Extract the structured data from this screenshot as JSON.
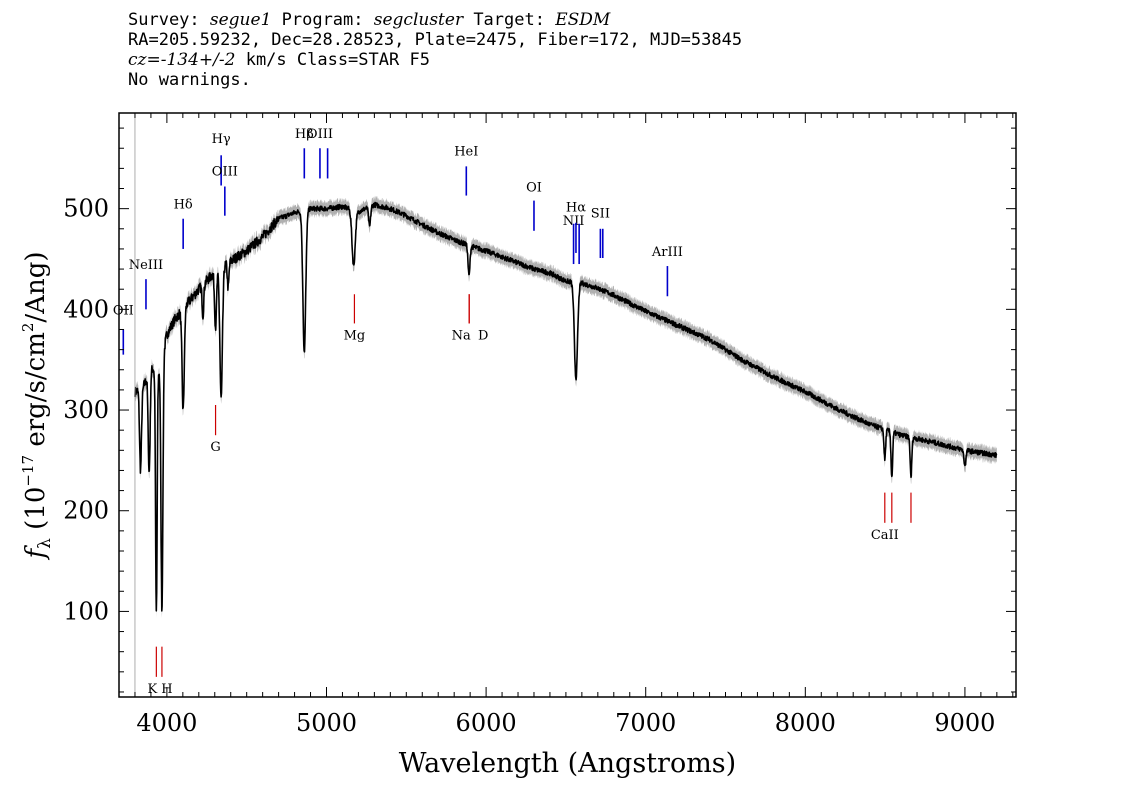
{
  "header": {
    "line1": {
      "survey_label": "Survey: ",
      "survey": "segue1",
      "program_label": " Program: ",
      "program": "segcluster",
      "target_label": " Target: ",
      "target": "ESDM"
    },
    "line2": "RA=205.59232, Dec=28.28523, Plate=2475, Fiber=172, MJD=53845",
    "line3": {
      "cz_label": "cz=",
      "cz": "-134+/-2",
      "rest": " km/s Class=STAR F5"
    },
    "line4": "No warnings."
  },
  "chart_data": {
    "type": "line",
    "xlabel": "Wavelength (Angstroms)",
    "ylabel_parts": {
      "f": "f",
      "sub": "λ",
      "a": " (10",
      "sup1": "−17",
      "b": " erg/s/cm",
      "sup2": "2",
      "c": "/Ang)"
    },
    "xlim": [
      3700,
      9320
    ],
    "ylim": [
      15,
      595
    ],
    "x_ticks": [
      4000,
      5000,
      6000,
      7000,
      8000,
      9000
    ],
    "x_tick_labels": [
      "4000",
      "5000",
      "6000",
      "7000",
      "8000",
      "9000"
    ],
    "y_ticks": [
      100,
      200,
      300,
      400,
      500
    ],
    "y_tick_labels": [
      "100",
      "200",
      "300",
      "400",
      "500"
    ],
    "spectrum_color": "#000000",
    "error_band_color": "#b0b0b0",
    "continuum": [
      [
        3800,
        318
      ],
      [
        3850,
        322
      ],
      [
        3900,
        342
      ],
      [
        3950,
        338
      ],
      [
        4000,
        375
      ],
      [
        4050,
        390
      ],
      [
        4100,
        400
      ],
      [
        4200,
        420
      ],
      [
        4300,
        437
      ],
      [
        4400,
        448
      ],
      [
        4500,
        458
      ],
      [
        4600,
        472
      ],
      [
        4700,
        490
      ],
      [
        4800,
        496
      ],
      [
        4900,
        500
      ],
      [
        5000,
        500
      ],
      [
        5100,
        502
      ],
      [
        5200,
        497
      ],
      [
        5300,
        504
      ],
      [
        5400,
        500
      ],
      [
        5500,
        493
      ],
      [
        5600,
        484
      ],
      [
        5700,
        476
      ],
      [
        5800,
        469
      ],
      [
        5900,
        463
      ],
      [
        6000,
        458
      ],
      [
        6100,
        452
      ],
      [
        6200,
        446
      ],
      [
        6300,
        440
      ],
      [
        6400,
        436
      ],
      [
        6500,
        428
      ],
      [
        6600,
        426
      ],
      [
        6700,
        421
      ],
      [
        6800,
        414
      ],
      [
        6900,
        406
      ],
      [
        7000,
        398
      ],
      [
        7200,
        384
      ],
      [
        7400,
        370
      ],
      [
        7600,
        350
      ],
      [
        7800,
        333
      ],
      [
        8000,
        318
      ],
      [
        8200,
        301
      ],
      [
        8400,
        286
      ],
      [
        8600,
        275
      ],
      [
        8800,
        268
      ],
      [
        9000,
        260
      ],
      [
        9200,
        255
      ]
    ],
    "absorption_lines": [
      {
        "x": 3835,
        "depth": 80,
        "width": 6
      },
      {
        "x": 3889,
        "depth": 100,
        "width": 6
      },
      {
        "x": 3934,
        "depth": 240,
        "width": 5
      },
      {
        "x": 3969,
        "depth": 250,
        "width": 6
      },
      {
        "x": 4102,
        "depth": 100,
        "width": 7
      },
      {
        "x": 4226,
        "depth": 30,
        "width": 5
      },
      {
        "x": 4305,
        "depth": 55,
        "width": 6
      },
      {
        "x": 4340,
        "depth": 130,
        "width": 8
      },
      {
        "x": 4384,
        "depth": 25,
        "width": 5
      },
      {
        "x": 4861,
        "depth": 140,
        "width": 9
      },
      {
        "x": 5170,
        "depth": 55,
        "width": 10
      },
      {
        "x": 5270,
        "depth": 20,
        "width": 6
      },
      {
        "x": 5893,
        "depth": 30,
        "width": 6
      },
      {
        "x": 6563,
        "depth": 95,
        "width": 10
      },
      {
        "x": 8498,
        "depth": 30,
        "width": 5
      },
      {
        "x": 8542,
        "depth": 45,
        "width": 5
      },
      {
        "x": 8662,
        "depth": 40,
        "width": 5
      },
      {
        "x": 9000,
        "depth": 15,
        "width": 6
      }
    ],
    "emission_markers": [
      {
        "label": "OII",
        "x": 3727,
        "label_y": 395,
        "y_top": 380,
        "y_bottom": 355
      },
      {
        "label": "NeIII",
        "x": 3869,
        "label_y": 440,
        "y_top": 430,
        "y_bottom": 400
      },
      {
        "label": "Hδ",
        "x": 4102,
        "label_y": 500,
        "y_top": 490,
        "y_bottom": 460
      },
      {
        "label": "Hγ",
        "x": 4340,
        "label_y": 565,
        "y_top": 553,
        "y_bottom": 523
      },
      {
        "label": "OIII",
        "x": 4363,
        "label_y": 533,
        "y_top": 522,
        "y_bottom": 493
      },
      {
        "label": "Hβ",
        "x": 4861,
        "label_y": 570,
        "y_top": 560,
        "y_bottom": 530
      },
      {
        "label": "OIII",
        "x": 4959,
        "label_y": 570,
        "y_top": 560,
        "y_bottom": 530
      },
      {
        "label": "OIII",
        "x": 5007,
        "label_y": 570,
        "y_top": 560,
        "y_bottom": 530
      },
      {
        "label": "HeI",
        "x": 5876,
        "label_y": 553,
        "y_top": 542,
        "y_bottom": 513
      },
      {
        "label": "OI",
        "x": 6300,
        "label_y": 517,
        "y_top": 508,
        "y_bottom": 478
      },
      {
        "label": "NII",
        "x": 6548,
        "label_y": 484,
        "y_top": 485,
        "y_bottom": 445
      },
      {
        "label": "Hα",
        "x": 6563,
        "label_y": 497,
        "y_top": 486,
        "y_bottom": 456
      },
      {
        "label": "NII",
        "x": 6583,
        "label_y": 484,
        "y_top": 485,
        "y_bottom": 445
      },
      {
        "label": "SII",
        "x": 6716,
        "label_y": 491,
        "y_top": 480,
        "y_bottom": 451
      },
      {
        "label": "SII",
        "x": 6731,
        "label_y": 491,
        "y_top": 480,
        "y_bottom": 451
      },
      {
        "label": "ArIII",
        "x": 7136,
        "label_y": 453,
        "y_top": 443,
        "y_bottom": 413
      }
    ],
    "absorption_markers": [
      {
        "label": "K",
        "x": 3934,
        "y_top": 65,
        "y_bottom": 35
      },
      {
        "label": "H",
        "x": 3969,
        "y_top": 65,
        "y_bottom": 35
      },
      {
        "label": "G",
        "x": 4305,
        "y_top": 305,
        "y_bottom": 275
      },
      {
        "label": "Mg",
        "x": 5175,
        "y_top": 415,
        "y_bottom": 386
      },
      {
        "label": "Na",
        "x": 5894,
        "y_top": 415,
        "y_bottom": 386
      },
      {
        "label": "D",
        "x": 5894,
        "y_top": 415,
        "y_bottom": 386
      },
      {
        "label": "CaII",
        "x": 8498,
        "y_top": 218,
        "y_bottom": 188
      },
      {
        "label": "CaII",
        "x": 8542,
        "y_top": 218,
        "y_bottom": 188
      },
      {
        "label": "CaII",
        "x": 8662,
        "y_top": 218,
        "y_bottom": 188
      }
    ],
    "emission_marker_color": "#0000cc",
    "absorption_marker_color": "#cc0000"
  }
}
